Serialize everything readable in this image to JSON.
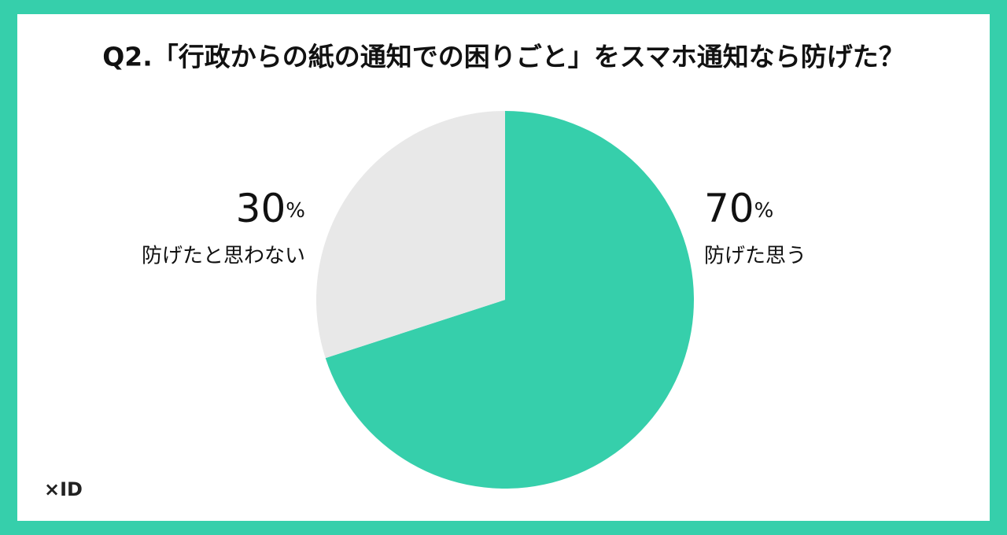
{
  "chart_data": {
    "type": "pie",
    "title": "Q2.「行政からの紙の通知での困りごと」をスマホ通知なら防げた？",
    "categories": [
      "防げた思う",
      "防げたと思わない"
    ],
    "values": [
      70,
      30
    ],
    "value_labels": [
      "70%",
      "30%"
    ],
    "colors": [
      "#36cfab",
      "#e8e8e8"
    ]
  },
  "logo": "×ID"
}
